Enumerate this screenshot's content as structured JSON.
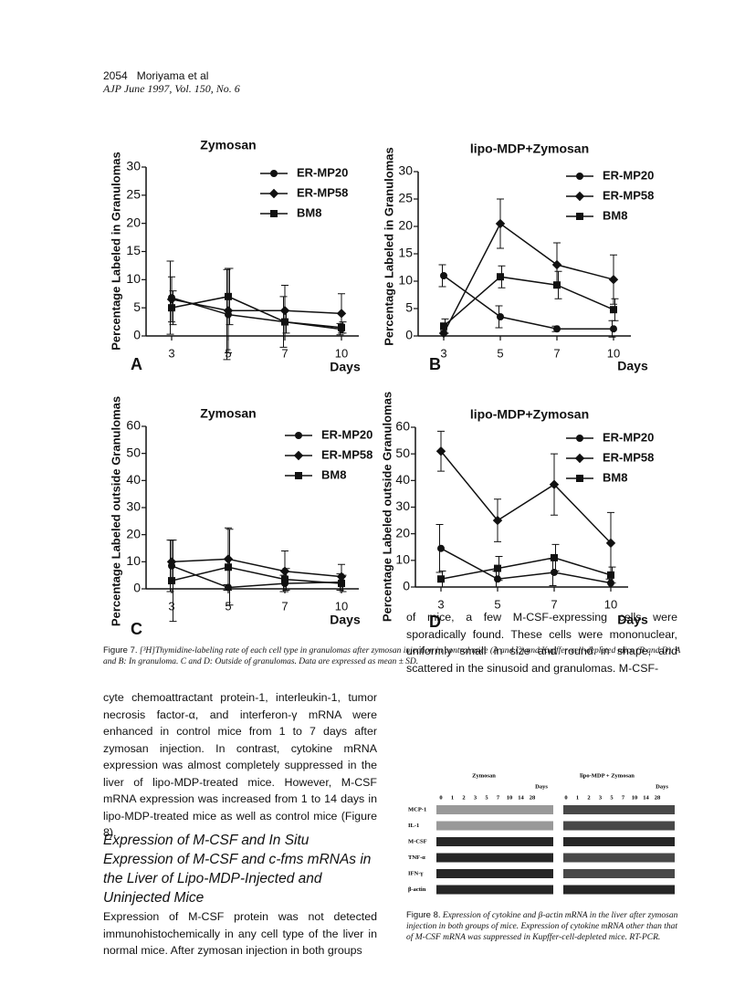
{
  "header": {
    "page": "2054",
    "authors": "Moriyama et al",
    "journal": "AJP June 1997, Vol. 150, No. 6"
  },
  "chart_data": [
    {
      "type": "line",
      "panel": "A",
      "title": "Zymosan",
      "ylabel": "Percentage Labeled in Granulomas",
      "xlabel": "Days",
      "categories": [
        "3",
        "5",
        "7",
        "10"
      ],
      "ylim": [
        0,
        30
      ],
      "yticks": [
        0,
        5,
        10,
        15,
        20,
        25,
        30
      ],
      "series": [
        {
          "name": "ER-MP20",
          "marker": "circle",
          "color": "#111111",
          "values": [
            6.8,
            3.8,
            2.5,
            1.2
          ],
          "errors": [
            6.5,
            8,
            4.5,
            1
          ]
        },
        {
          "name": "ER-MP58",
          "marker": "diamond",
          "color": "#111111",
          "values": [
            6.5,
            4.5,
            4.5,
            4
          ],
          "errors": [
            4,
            7.5,
            4.5,
            3.5
          ]
        },
        {
          "name": "BM8",
          "marker": "square",
          "color": "#111111",
          "values": [
            5,
            7,
            2.5,
            1.5
          ],
          "errors": [
            3,
            5,
            2,
            1
          ]
        }
      ]
    },
    {
      "type": "line",
      "panel": "B",
      "title": "lipo-MDP+Zymosan",
      "ylabel": "Percentage Labeled in Granulomas",
      "xlabel": "Days",
      "categories": [
        "3",
        "5",
        "7",
        "10"
      ],
      "ylim": [
        0,
        30
      ],
      "yticks": [
        0,
        5,
        10,
        15,
        20,
        25,
        30
      ],
      "series": [
        {
          "name": "ER-MP20",
          "marker": "circle",
          "color": "#111111",
          "values": [
            11,
            3.5,
            1.3,
            1.3
          ],
          "errors": [
            2,
            2,
            0.5,
            1.5
          ]
        },
        {
          "name": "ER-MP58",
          "marker": "diamond",
          "color": "#111111",
          "values": [
            0.5,
            20.5,
            13,
            10.3
          ],
          "errors": [
            0.5,
            4.5,
            4,
            4.5
          ]
        },
        {
          "name": "BM8",
          "marker": "square",
          "color": "#111111",
          "values": [
            1.8,
            10.8,
            9.3,
            4.8
          ],
          "errors": [
            1.3,
            2,
            2.5,
            2
          ]
        }
      ]
    },
    {
      "type": "line",
      "panel": "C",
      "title": "Zymosan",
      "ylabel": "Percentage Labeled outside Granulomas",
      "xlabel": "Days",
      "categories": [
        "3",
        "5",
        "7",
        "10"
      ],
      "ylim": [
        0,
        60
      ],
      "yticks": [
        0,
        10,
        20,
        30,
        40,
        50,
        60
      ],
      "series": [
        {
          "name": "ER-MP20",
          "marker": "circle",
          "color": "#111111",
          "values": [
            8.5,
            0.5,
            2,
            2.5
          ],
          "errors": [
            9.5,
            1,
            3,
            3
          ]
        },
        {
          "name": "ER-MP58",
          "marker": "diamond",
          "color": "#111111",
          "values": [
            10,
            11,
            6.5,
            4.5
          ],
          "errors": [
            8,
            11.5,
            7.5,
            4.5
          ]
        },
        {
          "name": "BM8",
          "marker": "square",
          "color": "#111111",
          "values": [
            3,
            8,
            3.5,
            2
          ],
          "errors": [
            15,
            14,
            4,
            3
          ]
        }
      ]
    },
    {
      "type": "line",
      "panel": "D",
      "title": "lipo-MDP+Zymosan",
      "ylabel": "Percentage Labeled outside Granulomas",
      "xlabel": "Days",
      "categories": [
        "3",
        "5",
        "7",
        "10"
      ],
      "ylim": [
        0,
        60
      ],
      "yticks": [
        0,
        10,
        20,
        30,
        40,
        50,
        60
      ],
      "series": [
        {
          "name": "ER-MP20",
          "marker": "circle",
          "color": "#111111",
          "values": [
            14.5,
            3,
            5.5,
            1.5
          ],
          "errors": [
            9,
            3,
            5,
            1.5
          ]
        },
        {
          "name": "ER-MP58",
          "marker": "diamond",
          "color": "#111111",
          "values": [
            51,
            25,
            38.5,
            16.5
          ],
          "errors": [
            7.5,
            8,
            11.5,
            11.5
          ]
        },
        {
          "name": "BM8",
          "marker": "square",
          "color": "#111111",
          "values": [
            3,
            7,
            11,
            4.5
          ],
          "errors": [
            3,
            4.5,
            5,
            3
          ]
        }
      ]
    }
  ],
  "figure7_caption": {
    "label": "Figure 7.",
    "text": "[³H]Thymidine-labeling rate of each cell type in granulomas after zymosan injection in control mice (A and C) and Kupffer-cell-depleted mice (B and D). A and B: In granuloma. C and D: Outside of granulomas. Data are expressed as mean ± SD."
  },
  "body": {
    "left_paragraph_1": "cyte chemoattractant protein-1, interleukin-1, tumor necrosis factor-α, and interferon-γ mRNA were enhanced in control mice from 1 to 7 days after zymosan injection. In contrast, cytokine mRNA expression was almost completely suppressed in the liver of lipo-MDP-treated mice. However, M-CSF mRNA expression was increased from 1 to 14 days in lipo-MDP-treated mice as well as control mice (Figure 8).",
    "heading": "Expression of M-CSF and In Situ Expression of M-CSF and c-fms mRNAs in the Liver of Lipo-MDP-Injected and Uninjected Mice",
    "left_paragraph_2": "Expression of M-CSF protein was not detected immunohistochemically in any cell type of the liver in normal mice. After zymosan injection in both groups",
    "right_paragraph": "of mice, a few M-CSF-expressing cells were sporadically found. These cells were mononuclear, uniformly small in size and round in shape, and scattered in the sinusoid and granulomas. M-CSF-"
  },
  "figure8": {
    "group_left": "Zymosan",
    "group_right": "lipo-MDP + Zymosan",
    "days_label": "Days",
    "lanes": [
      "0",
      "1",
      "2",
      "3",
      "5",
      "7",
      "10",
      "14",
      "28"
    ],
    "rows": [
      "MCP-1",
      "IL-1",
      "M-CSF",
      "TNF-α",
      "IFN-γ",
      "β-actin"
    ],
    "caption_label": "Figure 8.",
    "caption": "Expression of cytokine and β-actin mRNA in the liver after zymosan injection in both groups of mice. Expression of cytokine mRNA other than that of M-CSF mRNA was suppressed in Kupffer-cell-depleted mice. RT-PCR."
  }
}
